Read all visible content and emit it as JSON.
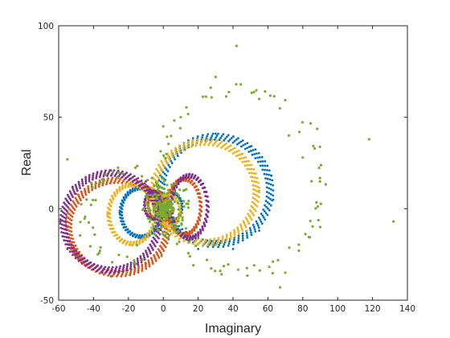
{
  "chart_data": {
    "type": "scatter",
    "title": "",
    "xlabel": "Imaginary",
    "ylabel": "Real",
    "xlim": [
      -60,
      140
    ],
    "ylim": [
      -50,
      100
    ],
    "x_ticks": [
      -60,
      -40,
      -20,
      0,
      20,
      40,
      60,
      80,
      100,
      120,
      140
    ],
    "y_ticks": [
      -50,
      0,
      50,
      100
    ],
    "grid": false,
    "legend": "none",
    "box": true,
    "series": [
      {
        "color": "#0072BD",
        "marker_size": 1.4,
        "curve": "cardioid-loops",
        "loops": [
          {
            "center": [
              30,
              10
            ],
            "rx": 33,
            "ry": 31,
            "points": 70
          },
          {
            "center": [
              -13,
              -2
            ],
            "rx": 12,
            "ry": 14,
            "points": 45
          },
          {
            "center": [
              5,
              1
            ],
            "rx": 6,
            "ry": 8,
            "points": 30
          }
        ],
        "samples": [
          [
            30,
            41
          ],
          [
            50,
            34
          ],
          [
            62,
            18
          ],
          [
            63,
            5
          ],
          [
            55,
            -12
          ],
          [
            40,
            -22
          ],
          [
            20,
            -22
          ],
          [
            5,
            -10
          ],
          [
            -1,
            5
          ],
          [
            -25,
            -2
          ],
          [
            -13,
            12
          ],
          [
            -13,
            -16
          ]
        ]
      },
      {
        "color": "#D95319",
        "marker_size": 1.4,
        "curve": "cardioid-loops",
        "loops": [
          {
            "center": [
              -26,
              -10
            ],
            "rx": 30,
            "ry": 27,
            "points": 75
          },
          {
            "center": [
              12,
              1
            ],
            "rx": 10,
            "ry": 16,
            "points": 40
          },
          {
            "center": [
              -4,
              2
            ],
            "rx": 5,
            "ry": 8,
            "points": 30
          }
        ],
        "samples": [
          [
            -55,
            -10
          ],
          [
            -50,
            8
          ],
          [
            -35,
            16
          ],
          [
            -15,
            15
          ],
          [
            0,
            4
          ],
          [
            -10,
            -30
          ],
          [
            -30,
            -37
          ],
          [
            -48,
            -28
          ],
          [
            22,
            1
          ],
          [
            12,
            17
          ],
          [
            12,
            -15
          ]
        ]
      },
      {
        "color": "#EDB120",
        "marker_size": 1.4,
        "curve": "cardioid-loops",
        "loops": [
          {
            "center": [
              24,
              9
            ],
            "rx": 31,
            "ry": 29,
            "points": 70
          },
          {
            "center": [
              -18,
              -3
            ],
            "rx": 14,
            "ry": 17,
            "points": 45
          },
          {
            "center": [
              3,
              -1
            ],
            "rx": 7,
            "ry": 9,
            "points": 30
          }
        ],
        "samples": [
          [
            25,
            37
          ],
          [
            45,
            30
          ],
          [
            55,
            10
          ],
          [
            48,
            -12
          ],
          [
            30,
            -20
          ],
          [
            10,
            -15
          ],
          [
            -32,
            -3
          ],
          [
            -18,
            14
          ],
          [
            -18,
            -20
          ],
          [
            -4,
            -3
          ]
        ]
      },
      {
        "color": "#7E2F8E",
        "marker_size": 1.4,
        "curve": "cardioid-loops",
        "loops": [
          {
            "center": [
              -30,
              -7
            ],
            "rx": 29,
            "ry": 28,
            "points": 75
          },
          {
            "center": [
              15,
              1
            ],
            "rx": 11,
            "ry": 18,
            "points": 40
          },
          {
            "center": [
              -6,
              2
            ],
            "rx": 5,
            "ry": 8,
            "points": 30
          }
        ],
        "samples": [
          [
            -59,
            -7
          ],
          [
            -52,
            12
          ],
          [
            -30,
            21
          ],
          [
            -10,
            15
          ],
          [
            -2,
            2
          ],
          [
            -15,
            -30
          ],
          [
            -35,
            -35
          ],
          [
            -55,
            -22
          ],
          [
            26,
            1
          ],
          [
            15,
            19
          ],
          [
            15,
            -17
          ]
        ]
      },
      {
        "color": "#77AC30",
        "marker_size": 1.6,
        "curve": "scattered-rings",
        "loops": [
          {
            "center": [
              45,
              15
            ],
            "rx": 48,
            "ry": 50,
            "points": 60
          },
          {
            "center": [
              -20,
              -5
            ],
            "rx": 25,
            "ry": 26,
            "points": 40
          },
          {
            "center": [
              2,
              0
            ],
            "rx": 10,
            "ry": 12,
            "points": 60
          }
        ],
        "samples": [
          [
            42,
            89
          ],
          [
            30,
            72
          ],
          [
            118,
            38
          ],
          [
            132,
            -7
          ],
          [
            -55,
            27
          ],
          [
            67,
            -43
          ],
          [
            -44,
            5
          ],
          [
            72,
            40
          ],
          [
            80,
            28
          ],
          [
            85,
            15
          ],
          [
            90,
            -10
          ],
          [
            70,
            -35
          ],
          [
            10,
            50
          ],
          [
            0,
            45
          ],
          [
            -15,
            -20
          ],
          [
            25,
            -28
          ],
          [
            55,
            60
          ],
          [
            78,
            42
          ]
        ]
      }
    ]
  }
}
